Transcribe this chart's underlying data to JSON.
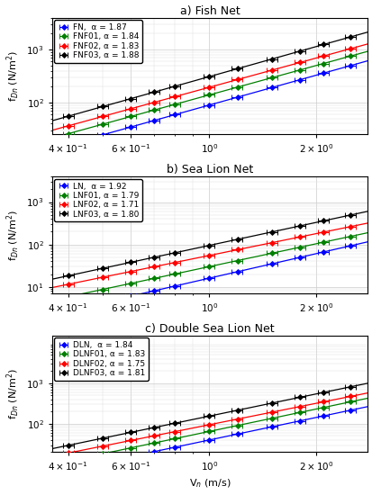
{
  "panels": [
    {
      "title": "a) Fish Net",
      "ylabel": "f$_{Dn}$ (N/m$^2$)",
      "series": [
        {
          "label": "FN,  α = 1.87",
          "color": "blue",
          "alpha_val": 1.87,
          "C": 90
        },
        {
          "label": "FNF01, α = 1.84",
          "color": "green",
          "alpha_val": 1.84,
          "C": 140
        },
        {
          "label": "FNF02, α = 1.83",
          "color": "red",
          "alpha_val": 1.83,
          "C": 195
        },
        {
          "label": "FNF03, α = 1.88",
          "color": "black",
          "alpha_val": 1.88,
          "C": 310
        }
      ],
      "ylim": [
        25,
        4000
      ],
      "yticks": [
        100,
        1000
      ],
      "show_xlabel": false
    },
    {
      "title": "b) Sea Lion Net",
      "ylabel": "f$_{Dn}$ (N/m$^2$)",
      "series": [
        {
          "label": "LN,  α = 1.92",
          "color": "blue",
          "alpha_val": 1.92,
          "C": 16
        },
        {
          "label": "LNF01, α = 1.79",
          "color": "green",
          "alpha_val": 1.79,
          "C": 30
        },
        {
          "label": "LNF02, α = 1.71",
          "color": "red",
          "alpha_val": 1.71,
          "C": 55
        },
        {
          "label": "LNF03, α = 1.80",
          "color": "black",
          "alpha_val": 1.8,
          "C": 95
        }
      ],
      "ylim": [
        7,
        4000
      ],
      "yticks": [
        10,
        100,
        1000
      ],
      "show_xlabel": false
    },
    {
      "title": "c) Double Sea Lion Net",
      "ylabel": "f$_{Dn}$ (N/m$^2$)",
      "series": [
        {
          "label": "DLN,  α = 1.84",
          "color": "blue",
          "alpha_val": 1.84,
          "C": 40
        },
        {
          "label": "DLNF01, α = 1.83",
          "color": "green",
          "alpha_val": 1.83,
          "C": 65
        },
        {
          "label": "DLNF02, α = 1.75",
          "color": "red",
          "alpha_val": 1.75,
          "C": 95
        },
        {
          "label": "DLNF03, α = 1.81",
          "color": "black",
          "alpha_val": 1.81,
          "C": 155
        }
      ],
      "ylim": [
        20,
        15000
      ],
      "yticks": [
        100,
        1000
      ],
      "show_xlabel": true
    }
  ],
  "xlabel": "V$_n$ (m/s)",
  "x_data": [
    0.4,
    0.5,
    0.6,
    0.7,
    0.8,
    1.0,
    1.2,
    1.5,
    1.8,
    2.1,
    2.5
  ],
  "xlim": [
    0.36,
    2.8
  ],
  "xticks": [
    0.4,
    0.6,
    1.0,
    2.0
  ],
  "xtick_labels": [
    "$4 \\times 10^{-1}$",
    "$6 \\times 10^{-1}$",
    "$10^{0}$",
    "$2 \\times 10^{0}$"
  ]
}
